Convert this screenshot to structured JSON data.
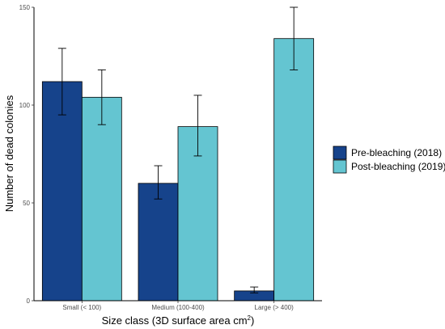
{
  "chart_data": {
    "type": "bar",
    "title": "",
    "xlabel": "Size class (3D surface area cm",
    "xlabel_superscript": "2",
    "xlabel_suffix": ")",
    "ylabel": "Number of dead colonies",
    "ylim": [
      0,
      150
    ],
    "yticks": [
      0,
      50,
      100,
      150
    ],
    "grid": false,
    "legend_position": "right",
    "categories": [
      "Small (< 100)",
      "Medium (100-400)",
      "Large (> 400)"
    ],
    "series": [
      {
        "name": "Pre-bleaching (2018)",
        "color": "#16438b",
        "values": [
          112,
          60,
          5
        ],
        "error": [
          [
            95,
            129
          ],
          [
            52,
            69
          ],
          [
            4,
            7
          ]
        ]
      },
      {
        "name": "Post-bleaching (2019)",
        "color": "#64c5d1",
        "values": [
          104,
          89,
          134
        ],
        "error": [
          [
            90,
            118
          ],
          [
            74,
            105
          ],
          [
            118,
            150
          ]
        ]
      }
    ]
  }
}
